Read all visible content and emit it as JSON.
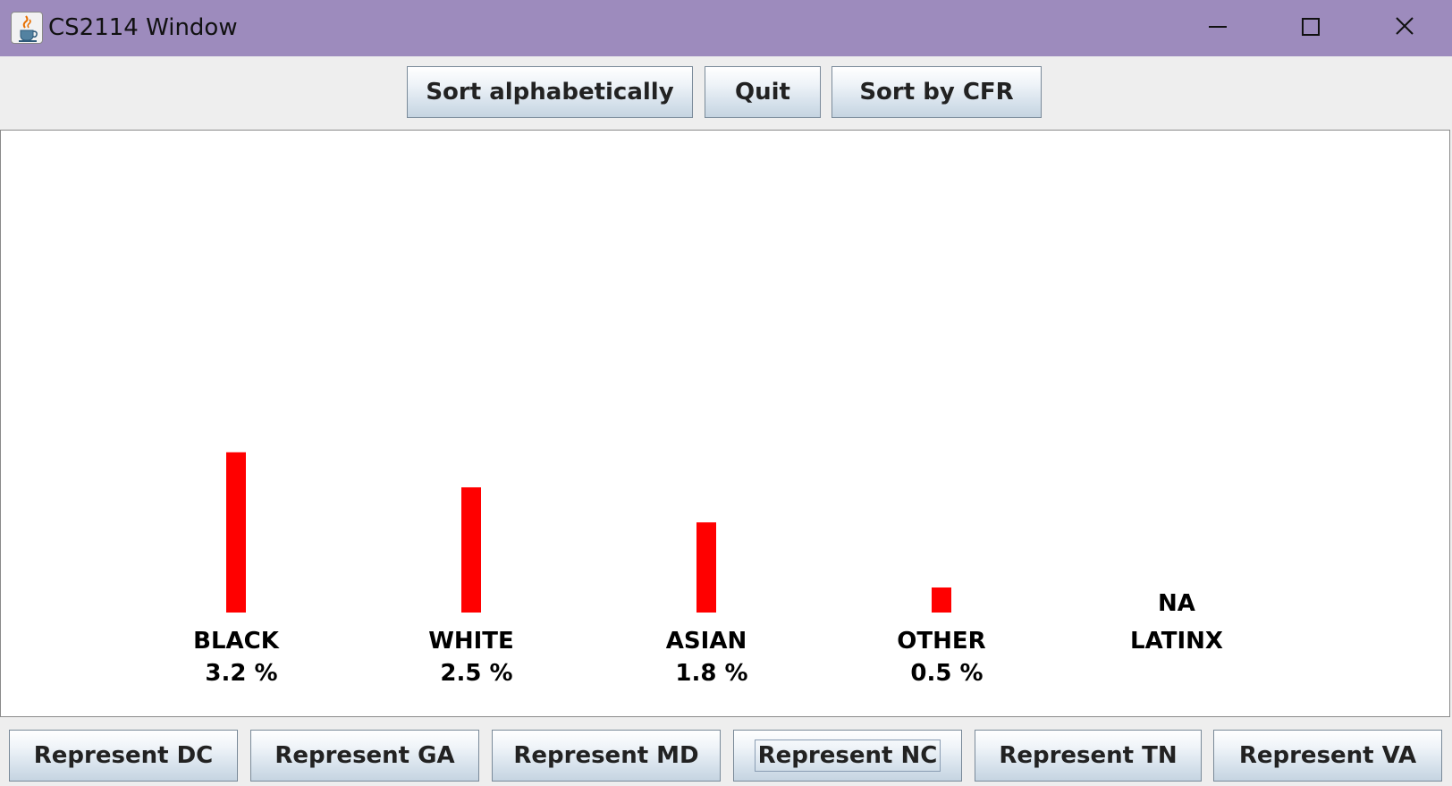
{
  "window": {
    "title": "CS2114 Window",
    "titlebar_color": "#9d8bbd",
    "icon": "java-cup-icon",
    "controls": [
      "minimize-icon",
      "maximize-icon",
      "close-icon"
    ]
  },
  "toolbar": {
    "sort_alpha_label": "Sort alphabetically",
    "quit_label": "Quit",
    "sort_cfr_label": "Sort by CFR"
  },
  "chart_data": {
    "type": "bar",
    "bar_color": "#ff0000",
    "categories": [
      "BLACK",
      "WHITE",
      "ASIAN",
      "OTHER",
      "LATINX"
    ],
    "values": [
      3.2,
      2.5,
      1.8,
      0.5,
      null
    ],
    "value_labels": [
      "3.2 %",
      "2.5 %",
      "1.8 %",
      "0.5 %",
      "NA"
    ],
    "missing_value_text": "NA",
    "title": "",
    "xlabel": "",
    "ylabel": "",
    "grid": false
  },
  "state_buttons": [
    {
      "label": "Represent DC"
    },
    {
      "label": "Represent GA"
    },
    {
      "label": "Represent MD"
    },
    {
      "label": "Represent NC",
      "focused": true
    },
    {
      "label": "Represent TN"
    },
    {
      "label": "Represent VA"
    }
  ]
}
